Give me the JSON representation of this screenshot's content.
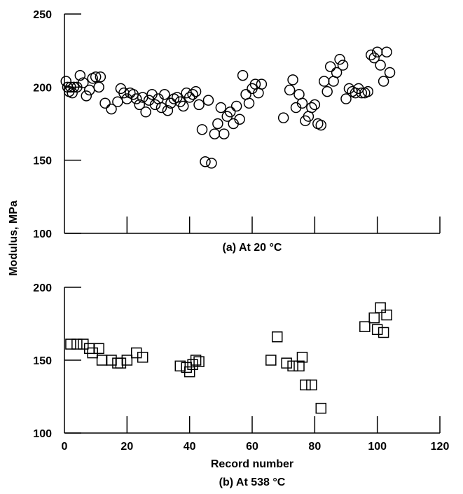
{
  "figure": {
    "ylabel": "Modulus, MPa",
    "xlabel": "Record number"
  },
  "chart_data": [
    {
      "type": "scatter",
      "caption": "(a) At 20 °C",
      "marker": "circle",
      "ylim": [
        100,
        250
      ],
      "xlim": [
        0,
        120
      ],
      "yticks": [
        "100",
        "150",
        "200",
        "250"
      ],
      "xticks": [
        "0",
        "20",
        "40",
        "60",
        "80",
        "100",
        "120"
      ],
      "x_tick_labels_shown": false,
      "points": [
        [
          0.5,
          204
        ],
        [
          1,
          200
        ],
        [
          1.5,
          197
        ],
        [
          2,
          200
        ],
        [
          2.5,
          196
        ],
        [
          3,
          200
        ],
        [
          4,
          200
        ],
        [
          5,
          208
        ],
        [
          6,
          203
        ],
        [
          7,
          194
        ],
        [
          8,
          198
        ],
        [
          9,
          206
        ],
        [
          10,
          207
        ],
        [
          11,
          200
        ],
        [
          11.5,
          207
        ],
        [
          13,
          189
        ],
        [
          15,
          185
        ],
        [
          17,
          190
        ],
        [
          18,
          199
        ],
        [
          19,
          196
        ],
        [
          20,
          192
        ],
        [
          21,
          196
        ],
        [
          22,
          195
        ],
        [
          23,
          192
        ],
        [
          24,
          188
        ],
        [
          25,
          193
        ],
        [
          26,
          183
        ],
        [
          27,
          191
        ],
        [
          28,
          195
        ],
        [
          29,
          188
        ],
        [
          30,
          192
        ],
        [
          31,
          186
        ],
        [
          32,
          195
        ],
        [
          33,
          184
        ],
        [
          34,
          189
        ],
        [
          35,
          192
        ],
        [
          36,
          193
        ],
        [
          37,
          190
        ],
        [
          38,
          187
        ],
        [
          39,
          196
        ],
        [
          40,
          193
        ],
        [
          41,
          195
        ],
        [
          42,
          197
        ],
        [
          43,
          188
        ],
        [
          44,
          171
        ],
        [
          45,
          149
        ],
        [
          46,
          191
        ],
        [
          47,
          148
        ],
        [
          48,
          168
        ],
        [
          49,
          175
        ],
        [
          50,
          186
        ],
        [
          51,
          168
        ],
        [
          52,
          180
        ],
        [
          53,
          183
        ],
        [
          54,
          175
        ],
        [
          55,
          187
        ],
        [
          56,
          178
        ],
        [
          57,
          208
        ],
        [
          58,
          195
        ],
        [
          59,
          189
        ],
        [
          60,
          199
        ],
        [
          61,
          202
        ],
        [
          62,
          196
        ],
        [
          63,
          202
        ],
        [
          70,
          179
        ],
        [
          72,
          198
        ],
        [
          73,
          205
        ],
        [
          74,
          186
        ],
        [
          75,
          195
        ],
        [
          76,
          189
        ],
        [
          77,
          177
        ],
        [
          78,
          180
        ],
        [
          79,
          186
        ],
        [
          80,
          188
        ],
        [
          81,
          175
        ],
        [
          82,
          174
        ],
        [
          83,
          204
        ],
        [
          84,
          197
        ],
        [
          85,
          214
        ],
        [
          86,
          204
        ],
        [
          87,
          210
        ],
        [
          88,
          219
        ],
        [
          89,
          215
        ],
        [
          90,
          192
        ],
        [
          91,
          199
        ],
        [
          92,
          197
        ],
        [
          93,
          196
        ],
        [
          94,
          199
        ],
        [
          95,
          196
        ],
        [
          96,
          196
        ],
        [
          97,
          197
        ],
        [
          98,
          222
        ],
        [
          99,
          220
        ],
        [
          100,
          224
        ],
        [
          101,
          215
        ],
        [
          102,
          204
        ],
        [
          103,
          224
        ],
        [
          104,
          210
        ]
      ]
    },
    {
      "type": "scatter",
      "caption": "(b) At 538 °C",
      "marker": "square",
      "ylim": [
        100,
        200
      ],
      "xlim": [
        0,
        120
      ],
      "yticks": [
        "100",
        "150",
        "200"
      ],
      "xticks": [
        "0",
        "20",
        "40",
        "60",
        "80",
        "100",
        "120"
      ],
      "x_tick_labels_shown": true,
      "points": [
        [
          2,
          161
        ],
        [
          4,
          161
        ],
        [
          6,
          161
        ],
        [
          8,
          158
        ],
        [
          9,
          155
        ],
        [
          11,
          158
        ],
        [
          12,
          150
        ],
        [
          15,
          150
        ],
        [
          17,
          148
        ],
        [
          18,
          148
        ],
        [
          20,
          150
        ],
        [
          23,
          155
        ],
        [
          25,
          152
        ],
        [
          37,
          146
        ],
        [
          39,
          145
        ],
        [
          40,
          142
        ],
        [
          41,
          147
        ],
        [
          42,
          150
        ],
        [
          43,
          149
        ],
        [
          66,
          150
        ],
        [
          68,
          166
        ],
        [
          71,
          148
        ],
        [
          73,
          146
        ],
        [
          75,
          146
        ],
        [
          76,
          152
        ],
        [
          77,
          133
        ],
        [
          79,
          133
        ],
        [
          82,
          117
        ],
        [
          96,
          173
        ],
        [
          99,
          179
        ],
        [
          100,
          171
        ],
        [
          101,
          186
        ],
        [
          102,
          169
        ],
        [
          103,
          181
        ]
      ]
    }
  ]
}
